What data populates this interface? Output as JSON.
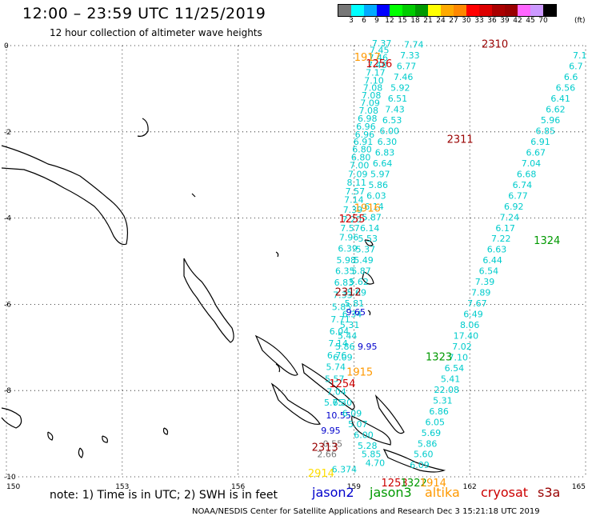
{
  "title": "12:00 – 23:59 UTC 11/25/2019",
  "subtitle": "12 hour collection of altimeter wave heights",
  "colorbar": {
    "colors": [
      "#777777",
      "#00ffff",
      "#00aaff",
      "#0000ff",
      "#00ff00",
      "#00cc00",
      "#009900",
      "#ffff00",
      "#ffaa00",
      "#ff8800",
      "#ff0000",
      "#dd0000",
      "#aa0000",
      "#990000",
      "#ff66ff",
      "#cc99ff",
      "#000000"
    ],
    "labels": [
      "3",
      "6",
      "9",
      "12",
      "15",
      "18",
      "21",
      "24",
      "27",
      "30",
      "33",
      "36",
      "39",
      "42",
      "45",
      "70"
    ],
    "unit": "(ft)"
  },
  "axes": {
    "x_ticks": [
      "150",
      "153",
      "156",
      "159",
      "162",
      "165"
    ],
    "y_ticks": [
      "0",
      "-2",
      "-4",
      "-6",
      "-8",
      "-10"
    ]
  },
  "note": "note:  1) Time is in UTC; 2) SWH is in feet",
  "satellites": [
    {
      "name": "jason2",
      "color": "#0000cc"
    },
    {
      "name": "jason3",
      "color": "#009900"
    },
    {
      "name": "altika",
      "color": "#ff9900"
    },
    {
      "name": "cryosat",
      "color": "#cc0000"
    },
    {
      "name": "s3a",
      "color": "#990000"
    }
  ],
  "footer": "NOAA/NESDIS Center for Satellite Applications and Research    Dec  3 15:21:18 UTC 2019",
  "tracks": [
    {
      "name": "track-a",
      "color": "#00cccc",
      "points": [
        {
          "lon": 159.72,
          "lat": -0.02,
          "v": "7.37"
        },
        {
          "lon": 159.66,
          "lat": -0.18,
          "v": "7.45"
        },
        {
          "lon": 159.63,
          "lat": -0.35,
          "v": "7.46"
        },
        {
          "lon": 159.6,
          "lat": -0.52,
          "v": "7.48"
        },
        {
          "lon": 159.56,
          "lat": -0.7,
          "v": "7.17"
        },
        {
          "lon": 159.52,
          "lat": -0.88,
          "v": "7.10"
        },
        {
          "lon": 159.49,
          "lat": -1.05,
          "v": "7.08"
        },
        {
          "lon": 159.45,
          "lat": -1.22,
          "v": "7.08"
        },
        {
          "lon": 159.42,
          "lat": -1.4,
          "v": "7.09"
        },
        {
          "lon": 159.38,
          "lat": -1.58,
          "v": "7.08"
        },
        {
          "lon": 159.35,
          "lat": -1.76,
          "v": "6.98"
        },
        {
          "lon": 159.31,
          "lat": -1.95,
          "v": "6.96"
        },
        {
          "lon": 159.28,
          "lat": -2.13,
          "v": "6.96"
        },
        {
          "lon": 159.24,
          "lat": -2.3,
          "v": "6.91"
        },
        {
          "lon": 159.21,
          "lat": -2.48,
          "v": "6.80"
        },
        {
          "lon": 159.18,
          "lat": -2.66,
          "v": "6.80"
        },
        {
          "lon": 159.14,
          "lat": -2.85,
          "v": "7.00"
        },
        {
          "lon": 159.1,
          "lat": -3.05,
          "v": "7.09"
        },
        {
          "lon": 159.07,
          "lat": -3.25,
          "v": "8.11"
        },
        {
          "lon": 159.03,
          "lat": -3.45,
          "v": "7.57"
        },
        {
          "lon": 159.0,
          "lat": -3.65,
          "v": "7.14"
        },
        {
          "lon": 158.97,
          "lat": -3.88,
          "v": "7.39"
        },
        {
          "lon": 158.94,
          "lat": -4.1,
          "v": "7.20"
        },
        {
          "lon": 158.9,
          "lat": -4.3,
          "v": "7.57"
        },
        {
          "lon": 158.87,
          "lat": -4.52,
          "v": "7.96"
        },
        {
          "lon": 158.84,
          "lat": -4.78,
          "v": "6.39"
        },
        {
          "lon": 158.8,
          "lat": -5.05,
          "v": "5.98"
        },
        {
          "lon": 158.77,
          "lat": -5.3,
          "v": "6.35"
        },
        {
          "lon": 158.74,
          "lat": -5.57,
          "v": "6.83"
        },
        {
          "lon": 158.71,
          "lat": -5.85,
          "v": "7.33"
        },
        {
          "lon": 158.68,
          "lat": -6.13,
          "v": "5.85"
        },
        {
          "lon": 158.65,
          "lat": -6.42,
          "v": "7.71"
        },
        {
          "lon": 158.62,
          "lat": -6.7,
          "v": "6.04"
        },
        {
          "lon": 158.59,
          "lat": -6.98,
          "v": "7.14"
        },
        {
          "lon": 158.56,
          "lat": -7.25,
          "v": "6.76"
        },
        {
          "lon": 158.53,
          "lat": -7.52,
          "v": "5.74"
        },
        {
          "lon": 158.5,
          "lat": -7.8,
          "v": "5.57"
        }
      ]
    },
    {
      "name": "track-b",
      "color": "#00cccc",
      "points": [
        {
          "lon": 160.55,
          "lat": -0.05,
          "v": "7.74"
        },
        {
          "lon": 160.45,
          "lat": -0.3,
          "v": "7.33"
        },
        {
          "lon": 160.36,
          "lat": -0.55,
          "v": "6.77"
        },
        {
          "lon": 160.28,
          "lat": -0.8,
          "v": "7.46"
        },
        {
          "lon": 160.2,
          "lat": -1.05,
          "v": "5.92"
        },
        {
          "lon": 160.13,
          "lat": -1.3,
          "v": "6.51"
        },
        {
          "lon": 160.06,
          "lat": -1.55,
          "v": "7.43"
        },
        {
          "lon": 159.99,
          "lat": -1.8,
          "v": "6.53"
        },
        {
          "lon": 159.92,
          "lat": -2.05,
          "v": "6.00"
        },
        {
          "lon": 159.86,
          "lat": -2.3,
          "v": "6.30"
        },
        {
          "lon": 159.8,
          "lat": -2.55,
          "v": "6.83"
        },
        {
          "lon": 159.74,
          "lat": -2.8,
          "v": "6.64"
        },
        {
          "lon": 159.68,
          "lat": -3.05,
          "v": "5.97"
        },
        {
          "lon": 159.63,
          "lat": -3.3,
          "v": "5.86"
        },
        {
          "lon": 159.58,
          "lat": -3.55,
          "v": "6.03"
        },
        {
          "lon": 159.52,
          "lat": -3.8,
          "v": "6.14"
        },
        {
          "lon": 159.46,
          "lat": -4.05,
          "v": "5.87"
        },
        {
          "lon": 159.41,
          "lat": -4.3,
          "v": "6.14"
        },
        {
          "lon": 159.36,
          "lat": -4.55,
          "v": "5.53"
        },
        {
          "lon": 159.3,
          "lat": -4.8,
          "v": "5.37"
        },
        {
          "lon": 159.25,
          "lat": -5.05,
          "v": "5.49"
        },
        {
          "lon": 159.19,
          "lat": -5.3,
          "v": "5.87"
        },
        {
          "lon": 159.13,
          "lat": -5.55,
          "v": "5.62"
        },
        {
          "lon": 159.07,
          "lat": -5.8,
          "v": "5.69"
        },
        {
          "lon": 159.01,
          "lat": -6.05,
          "v": "5.81"
        },
        {
          "lon": 158.95,
          "lat": -6.3,
          "v": "6.34"
        },
        {
          "lon": 158.89,
          "lat": -6.55,
          "v": "5.31"
        },
        {
          "lon": 158.83,
          "lat": -6.8,
          "v": "5.44"
        },
        {
          "lon": 158.77,
          "lat": -7.05,
          "v": "5.86"
        },
        {
          "lon": 158.71,
          "lat": -7.3,
          "v": "6.09"
        }
      ]
    },
    {
      "name": "track-c",
      "color": "#00cccc",
      "points": [
        {
          "lon": 164.85,
          "lat": -0.3,
          "v": "7.1"
        },
        {
          "lon": 164.75,
          "lat": -0.55,
          "v": "6.7"
        },
        {
          "lon": 164.62,
          "lat": -0.8,
          "v": "6.6"
        },
        {
          "lon": 164.48,
          "lat": -1.05,
          "v": "6.56"
        },
        {
          "lon": 164.35,
          "lat": -1.3,
          "v": "6.41"
        },
        {
          "lon": 164.22,
          "lat": -1.55,
          "v": "6.62"
        },
        {
          "lon": 164.09,
          "lat": -1.8,
          "v": "5.96"
        },
        {
          "lon": 163.96,
          "lat": -2.05,
          "v": "6.85"
        },
        {
          "lon": 163.83,
          "lat": -2.3,
          "v": "6.91"
        },
        {
          "lon": 163.71,
          "lat": -2.55,
          "v": "6.67"
        },
        {
          "lon": 163.59,
          "lat": -2.8,
          "v": "7.04"
        },
        {
          "lon": 163.47,
          "lat": -3.05,
          "v": "6.68"
        },
        {
          "lon": 163.36,
          "lat": -3.3,
          "v": "6.74"
        },
        {
          "lon": 163.25,
          "lat": -3.55,
          "v": "6.77"
        },
        {
          "lon": 163.14,
          "lat": -3.8,
          "v": "6.92"
        },
        {
          "lon": 163.03,
          "lat": -4.05,
          "v": "7.24"
        },
        {
          "lon": 162.92,
          "lat": -4.3,
          "v": "6.17"
        },
        {
          "lon": 162.81,
          "lat": -4.55,
          "v": "7.22"
        },
        {
          "lon": 162.7,
          "lat": -4.8,
          "v": "6.63"
        },
        {
          "lon": 162.59,
          "lat": -5.05,
          "v": "6.44"
        },
        {
          "lon": 162.49,
          "lat": -5.3,
          "v": "6.54"
        },
        {
          "lon": 162.39,
          "lat": -5.55,
          "v": "7.39"
        },
        {
          "lon": 162.29,
          "lat": -5.8,
          "v": "7.89"
        },
        {
          "lon": 162.19,
          "lat": -6.05,
          "v": "7.67"
        },
        {
          "lon": 162.09,
          "lat": -6.3,
          "v": "6.49"
        },
        {
          "lon": 162.0,
          "lat": -6.55,
          "v": "8.06"
        },
        {
          "lon": 161.9,
          "lat": -6.8,
          "v": "17.40"
        },
        {
          "lon": 161.8,
          "lat": -7.05,
          "v": "7.02"
        },
        {
          "lon": 161.7,
          "lat": -7.3,
          "v": "7.10"
        },
        {
          "lon": 161.6,
          "lat": -7.55,
          "v": "6.54"
        },
        {
          "lon": 161.5,
          "lat": -7.8,
          "v": "5.41"
        },
        {
          "lon": 161.4,
          "lat": -8.05,
          "v": "22.08"
        },
        {
          "lon": 161.3,
          "lat": -8.3,
          "v": "5.31"
        },
        {
          "lon": 161.2,
          "lat": -8.55,
          "v": "6.86"
        },
        {
          "lon": 161.1,
          "lat": -8.8,
          "v": "6.05"
        },
        {
          "lon": 161.0,
          "lat": -9.05,
          "v": "5.69"
        },
        {
          "lon": 160.9,
          "lat": -9.3,
          "v": "5.86"
        },
        {
          "lon": 160.8,
          "lat": -9.55,
          "v": "5.60"
        },
        {
          "lon": 160.7,
          "lat": -9.8,
          "v": "6.09"
        }
      ]
    }
  ],
  "tracks_lower": [
    {
      "lon": 158.55,
      "lat": -8.1,
      "v": "7.04",
      "color": "#00cccc"
    },
    {
      "lon": 158.48,
      "lat": -8.35,
      "v": "5.75",
      "color": "#00cccc"
    },
    {
      "lon": 158.6,
      "lat": -8.65,
      "v": "10.55",
      "color": "#0000cc"
    },
    {
      "lon": 158.4,
      "lat": -9.0,
      "v": "9.95",
      "color": "#0000cc"
    },
    {
      "lon": 158.7,
      "lat": -8.35,
      "v": "6.30",
      "color": "#00cccc"
    },
    {
      "lon": 158.95,
      "lat": -8.6,
      "v": "6.09",
      "color": "#00cccc"
    },
    {
      "lon": 159.1,
      "lat": -8.85,
      "v": "5.07",
      "color": "#00cccc"
    },
    {
      "lon": 159.25,
      "lat": -9.1,
      "v": "6.00",
      "color": "#00cccc"
    },
    {
      "lon": 159.35,
      "lat": -9.35,
      "v": "5.28",
      "color": "#00cccc"
    },
    {
      "lon": 159.45,
      "lat": -9.55,
      "v": "5.85",
      "color": "#00cccc"
    },
    {
      "lon": 159.55,
      "lat": -9.75,
      "v": "4.70",
      "color": "#00cccc"
    },
    {
      "lon": 158.45,
      "lat": -9.3,
      "v": "0.55",
      "color": "#777777"
    },
    {
      "lon": 158.3,
      "lat": -9.55,
      "v": "2.66",
      "color": "#777777"
    },
    {
      "lon": 158.75,
      "lat": -9.9,
      "v": "6.374",
      "color": "#00cccc"
    }
  ],
  "extra_values": [
    {
      "lon": 159.05,
      "lat": -6.25,
      "v": "9.65",
      "color": "#0000cc"
    },
    {
      "lon": 159.35,
      "lat": -7.05,
      "v": "9.95",
      "color": "#0000cc"
    }
  ],
  "times": [
    {
      "lon": 162.65,
      "lat": -0.05,
      "v": "2310",
      "color": "#990000"
    },
    {
      "lon": 159.35,
      "lat": -0.35,
      "v": "1917",
      "color": "#ff9900"
    },
    {
      "lon": 159.65,
      "lat": -0.5,
      "v": "1256",
      "color": "#cc0000"
    },
    {
      "lon": 161.75,
      "lat": -2.25,
      "v": "2311",
      "color": "#990000"
    },
    {
      "lon": 159.35,
      "lat": -3.85,
      "v": "1916",
      "color": "#ff9900"
    },
    {
      "lon": 158.95,
      "lat": -4.1,
      "v": "1255",
      "color": "#cc0000"
    },
    {
      "lon": 164.0,
      "lat": -4.6,
      "v": "1324",
      "color": "#009900"
    },
    {
      "lon": 158.85,
      "lat": -5.8,
      "v": "2312",
      "color": "#990000"
    },
    {
      "lon": 161.2,
      "lat": -7.3,
      "v": "1323",
      "color": "#009900"
    },
    {
      "lon": 159.15,
      "lat": -7.65,
      "v": "1915",
      "color": "#ff9900"
    },
    {
      "lon": 158.7,
      "lat": -7.92,
      "v": "1254",
      "color": "#cc0000"
    },
    {
      "lon": 158.25,
      "lat": -9.4,
      "v": "2313",
      "color": "#990000"
    },
    {
      "lon": 158.15,
      "lat": -10.0,
      "v": "2914",
      "color": "#ffdd00"
    },
    {
      "lon": 160.05,
      "lat": -10.22,
      "v": "1253",
      "color": "#cc0000"
    },
    {
      "lon": 160.55,
      "lat": -10.22,
      "v": "1322",
      "color": "#009900"
    },
    {
      "lon": 161.05,
      "lat": -10.22,
      "v": "1914",
      "color": "#ff9900"
    }
  ]
}
